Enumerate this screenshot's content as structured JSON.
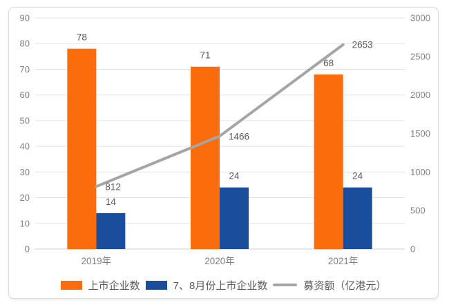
{
  "chart_data": {
    "type": "combo-bar-line",
    "title": "",
    "categories": [
      "2019年",
      "2020年",
      "2021年"
    ],
    "series": [
      {
        "name": "上市企业数",
        "type": "bar",
        "axis": "left",
        "color": "#FB6D0C",
        "values": [
          78,
          71,
          68
        ]
      },
      {
        "name": "7、8月份上市企业数",
        "type": "bar",
        "axis": "left",
        "color": "#1A4E9D",
        "values": [
          14,
          24,
          24
        ]
      },
      {
        "name": "募资额（亿港元）",
        "type": "line",
        "axis": "right",
        "color": "#A5A5A5",
        "values": [
          812,
          1466,
          2653
        ]
      }
    ],
    "left_axis": {
      "min": 0,
      "max": 90,
      "step": 10
    },
    "right_axis": {
      "min": 0,
      "max": 3000,
      "step": 500
    },
    "grid": true,
    "data_labels": true,
    "legend_position": "bottom"
  },
  "styles": {
    "bar1_color": "#FB6D0C",
    "bar2_color": "#1A4E9D",
    "line_color": "#A5A5A5",
    "tick_color": "#808080",
    "label_color": "#595959",
    "gridline_color": "#E3E3E3",
    "axisline_color": "#CFCFCF",
    "border_color": "#DBDBDB",
    "background": "#FFFFFF"
  }
}
